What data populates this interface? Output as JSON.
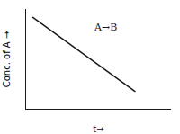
{
  "chart_data": {
    "type": "line",
    "xlabel": "t→",
    "ylabel": "Conc. of A →",
    "annotation": "A→B",
    "x": [
      0.05,
      0.75
    ],
    "values": [
      0.92,
      0.18
    ],
    "color": "#1a1a1a",
    "xlim": [
      0,
      1
    ],
    "ylim": [
      0,
      1
    ],
    "xticks": [],
    "yticks": [],
    "tick_labels": false,
    "grid": false
  }
}
